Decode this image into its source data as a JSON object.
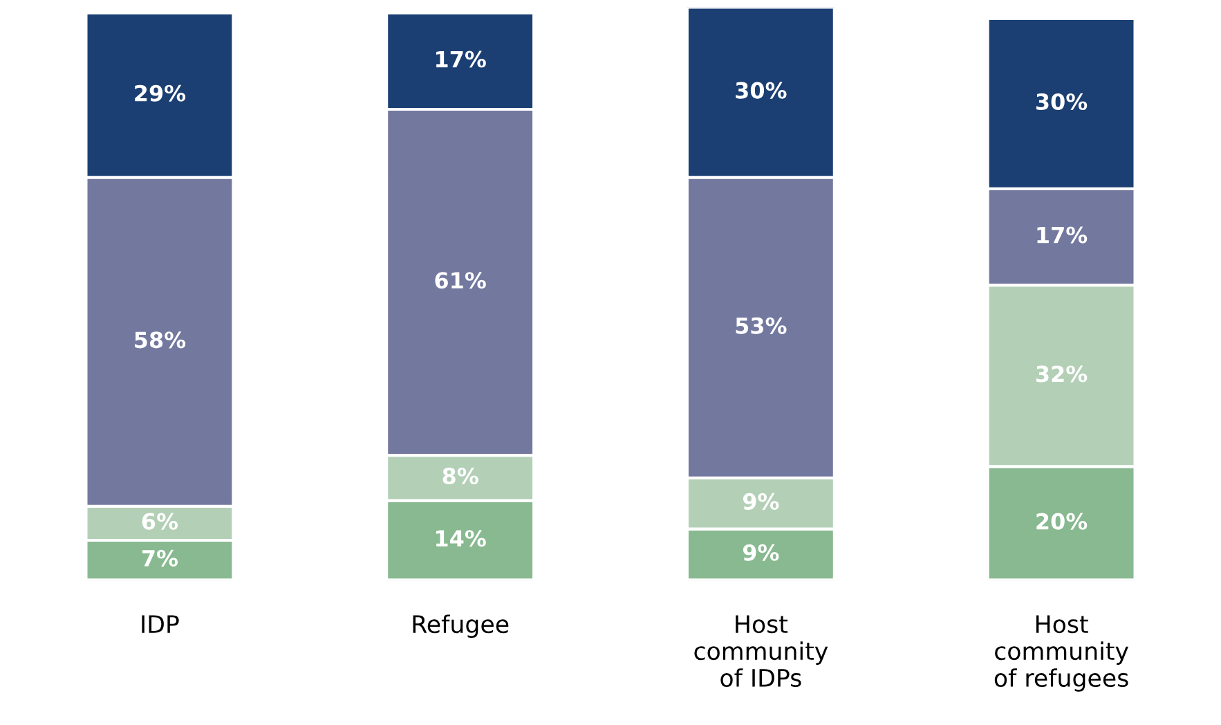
{
  "chart_data": {
    "type": "bar",
    "stacked": true,
    "tick_labels": "x",
    "grid": false,
    "legend": false,
    "categories": [
      "IDP",
      "Refugee",
      "Host\ncommunity\nof IDPs",
      "Host\ncommunity\nof refugees"
    ],
    "series": [
      {
        "color": "#88b990",
        "values": [
          7,
          14,
          9,
          20
        ],
        "value_labels": [
          "7%",
          "14%",
          "9%",
          "20%"
        ]
      },
      {
        "color": "#b3d0b7",
        "values": [
          6,
          8,
          9,
          32
        ],
        "value_labels": [
          "6%",
          "8%",
          "9%",
          "32%"
        ]
      },
      {
        "color": "#72789e",
        "values": [
          58,
          61,
          53,
          17
        ],
        "value_labels": [
          "58%",
          "61%",
          "53%",
          "17%"
        ]
      },
      {
        "color": "#1b3f73",
        "values": [
          29,
          17,
          30,
          30
        ],
        "value_labels": [
          "29%",
          "17%",
          "30%",
          "30%"
        ]
      }
    ]
  }
}
